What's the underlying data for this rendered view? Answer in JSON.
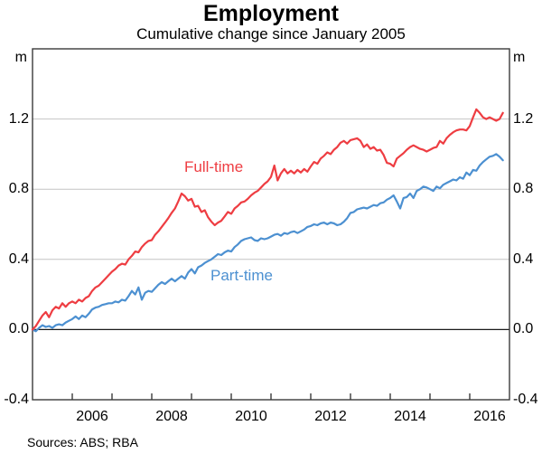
{
  "page": {
    "title": "Employment",
    "subtitle": "Cumulative change since January 2005",
    "unit_left": "m",
    "unit_right": "m",
    "sources": "Sources:  ABS; RBA"
  },
  "chart_data": {
    "type": "line",
    "title": "Employment",
    "subtitle": "Cumulative change since January 2005",
    "unit": "m",
    "ylim": [
      -0.4,
      1.6
    ],
    "ytick_labels": [
      "1.2",
      "0.8",
      "0.4",
      "0.0",
      "-0.4"
    ],
    "ytick_values": [
      1.2,
      0.8,
      0.4,
      0.0,
      -0.4
    ],
    "gridline_values": [
      1.2,
      0.8,
      0.4
    ],
    "zero_line_value": 0.0,
    "grid_on": true,
    "legend_position": "inline-labels-on-lines",
    "x_start_year": 2005,
    "x_end_year": 2017,
    "points_per_year": 12,
    "xtick_years": [
      2006,
      2007,
      2008,
      2009,
      2010,
      2011,
      2012,
      2013,
      2014,
      2015,
      2016
    ],
    "xtick_labels": [
      "2006",
      "2008",
      "2010",
      "2012",
      "2014",
      "2016"
    ],
    "xtick_label_years": [
      2006,
      2008,
      2010,
      2012,
      2014,
      2016
    ],
    "colors": {
      "full_time": "#ee3d42",
      "part_time": "#4c90d1",
      "grid": "#c4c4c4",
      "frame": "#3a3a3a",
      "zero_line": "#1a1a1a"
    },
    "series": [
      {
        "name": "Full-time",
        "color": "#ee3d42",
        "start": "2005-01",
        "end": "2016-11",
        "values": [
          0.0,
          0.02,
          0.05,
          0.08,
          0.1,
          0.07,
          0.11,
          0.13,
          0.12,
          0.15,
          0.13,
          0.15,
          0.16,
          0.15,
          0.17,
          0.16,
          0.18,
          0.19,
          0.22,
          0.24,
          0.25,
          0.27,
          0.29,
          0.31,
          0.33,
          0.345,
          0.365,
          0.375,
          0.37,
          0.4,
          0.42,
          0.445,
          0.44,
          0.47,
          0.49,
          0.505,
          0.51,
          0.54,
          0.56,
          0.585,
          0.61,
          0.635,
          0.665,
          0.69,
          0.73,
          0.775,
          0.76,
          0.735,
          0.745,
          0.7,
          0.705,
          0.67,
          0.68,
          0.64,
          0.615,
          0.595,
          0.61,
          0.62,
          0.645,
          0.67,
          0.66,
          0.69,
          0.705,
          0.725,
          0.73,
          0.745,
          0.765,
          0.78,
          0.79,
          0.81,
          0.83,
          0.845,
          0.87,
          0.935,
          0.85,
          0.89,
          0.915,
          0.89,
          0.905,
          0.89,
          0.91,
          0.895,
          0.915,
          0.9,
          0.93,
          0.955,
          0.945,
          0.975,
          0.99,
          1.01,
          1.0,
          1.025,
          1.04,
          1.065,
          1.075,
          1.06,
          1.08,
          1.085,
          1.09,
          1.075,
          1.04,
          1.055,
          1.03,
          1.04,
          1.02,
          1.025,
          0.995,
          0.95,
          0.945,
          0.93,
          0.975,
          0.99,
          1.005,
          1.025,
          1.04,
          1.05,
          1.04,
          1.03,
          1.025,
          1.015,
          1.025,
          1.035,
          1.04,
          1.075,
          1.06,
          1.09,
          1.11,
          1.125,
          1.135,
          1.14,
          1.14,
          1.135,
          1.16,
          1.21,
          1.255,
          1.235,
          1.21,
          1.2,
          1.21,
          1.2,
          1.19,
          1.2,
          1.235
        ]
      },
      {
        "name": "Part-time",
        "color": "#4c90d1",
        "start": "2005-01",
        "end": "2016-11",
        "values": [
          0.0,
          -0.01,
          0.01,
          0.025,
          0.015,
          0.02,
          0.01,
          0.025,
          0.03,
          0.025,
          0.04,
          0.05,
          0.06,
          0.075,
          0.06,
          0.08,
          0.07,
          0.09,
          0.115,
          0.125,
          0.13,
          0.14,
          0.145,
          0.15,
          0.15,
          0.16,
          0.155,
          0.17,
          0.165,
          0.19,
          0.22,
          0.2,
          0.24,
          0.17,
          0.21,
          0.22,
          0.215,
          0.235,
          0.255,
          0.27,
          0.26,
          0.275,
          0.29,
          0.275,
          0.29,
          0.305,
          0.29,
          0.325,
          0.345,
          0.32,
          0.355,
          0.365,
          0.38,
          0.39,
          0.4,
          0.415,
          0.43,
          0.425,
          0.44,
          0.45,
          0.445,
          0.47,
          0.485,
          0.505,
          0.515,
          0.52,
          0.525,
          0.51,
          0.505,
          0.52,
          0.515,
          0.52,
          0.53,
          0.54,
          0.545,
          0.535,
          0.55,
          0.545,
          0.555,
          0.56,
          0.55,
          0.56,
          0.57,
          0.585,
          0.59,
          0.6,
          0.595,
          0.605,
          0.61,
          0.6,
          0.61,
          0.605,
          0.595,
          0.6,
          0.615,
          0.635,
          0.665,
          0.67,
          0.685,
          0.69,
          0.695,
          0.69,
          0.7,
          0.71,
          0.705,
          0.72,
          0.725,
          0.74,
          0.75,
          0.765,
          0.73,
          0.69,
          0.75,
          0.755,
          0.775,
          0.75,
          0.79,
          0.8,
          0.815,
          0.81,
          0.8,
          0.79,
          0.815,
          0.805,
          0.825,
          0.835,
          0.845,
          0.855,
          0.85,
          0.868,
          0.86,
          0.895,
          0.88,
          0.91,
          0.905,
          0.935,
          0.955,
          0.97,
          0.985,
          0.99,
          1.0,
          0.985,
          0.965
        ]
      }
    ],
    "sources": "Sources:  ABS; RBA"
  }
}
